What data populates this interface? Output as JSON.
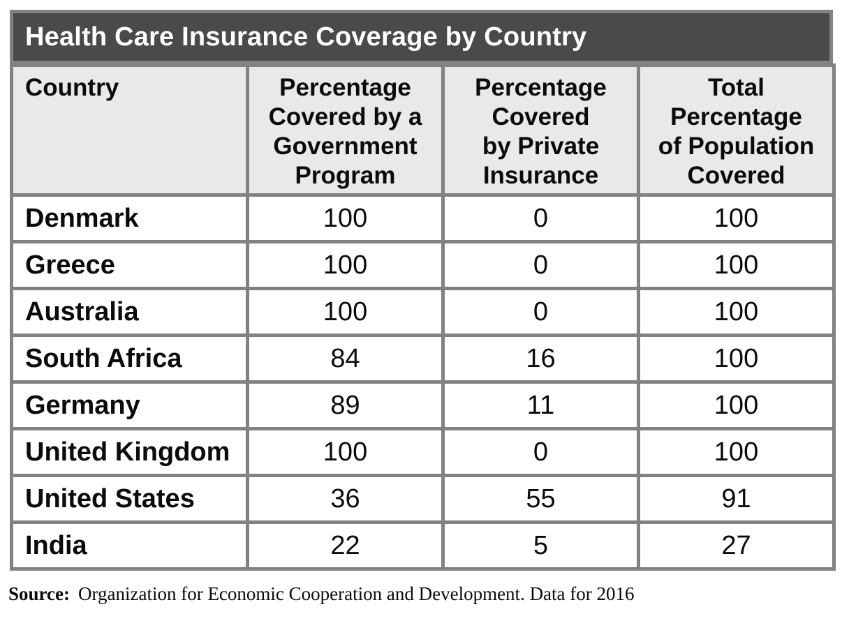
{
  "title": "Health Care Insurance Coverage by Country",
  "table": {
    "headers": [
      {
        "label": "Country"
      },
      {
        "label": "Percentage\nCovered by a\nGovernment\nProgram"
      },
      {
        "label": "Percentage\nCovered\nby Private\nInsurance"
      },
      {
        "label": "Total\nPercentage\nof Population\nCovered"
      }
    ],
    "rows": [
      [
        "Denmark",
        "100",
        "0",
        "100"
      ],
      [
        "Greece",
        "100",
        "0",
        "100"
      ],
      [
        "Australia",
        "100",
        "0",
        "100"
      ],
      [
        "South Africa",
        "84",
        "16",
        "100"
      ],
      [
        "Germany",
        "89",
        "11",
        "100"
      ],
      [
        "United Kingdom",
        "100",
        "0",
        "100"
      ],
      [
        "United States",
        "36",
        "55",
        "91"
      ],
      [
        "India",
        "22",
        "5",
        "27"
      ]
    ]
  },
  "source": {
    "label": "Source:",
    "text": "Organization for Economic Cooperation and Development. Data for 2016"
  },
  "colors": {
    "title_bar": "#4a4a4c",
    "title_text": "#ffffff",
    "header_bg": "#e9e9ea",
    "border": "#828285",
    "text": "#0b0b0b",
    "row_bg": "#ffffff"
  }
}
